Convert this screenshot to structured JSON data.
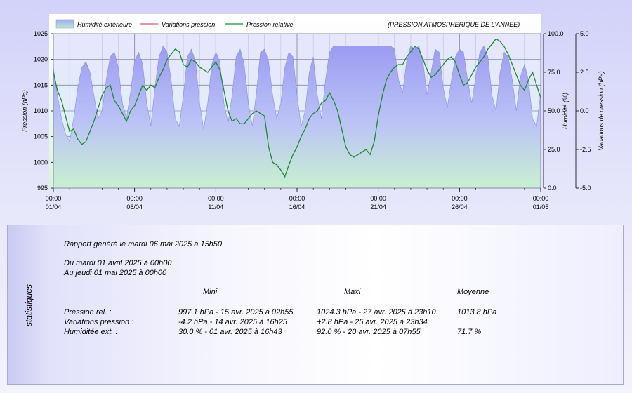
{
  "chart_data": {
    "type": "area",
    "title": "(PRESSION ATMOSPHERIQUE DE L'ANNEE)",
    "legend": {
      "placement": "top",
      "items": [
        {
          "label": "Humidité extérieure",
          "kind": "area",
          "color": "#9a9af0"
        },
        {
          "label": "Variations pression",
          "kind": "line",
          "color": "#c03060"
        },
        {
          "label": "Pression relative",
          "kind": "line",
          "color": "#1e8a2e"
        }
      ]
    },
    "x_axis": {
      "range": [
        "2025-04-01 00:00",
        "2025-05-01 00:00"
      ],
      "ticks": [
        {
          "time": "00:00",
          "date": "01/04",
          "day": 0
        },
        {
          "time": "00:00",
          "date": "06/04",
          "day": 5
        },
        {
          "time": "00:00",
          "date": "11/04",
          "day": 10
        },
        {
          "time": "00:00",
          "date": "16/04",
          "day": 15
        },
        {
          "time": "00:00",
          "date": "21/04",
          "day": 20
        },
        {
          "time": "00:00",
          "date": "26/04",
          "day": 25
        },
        {
          "time": "00:00",
          "date": "01/05",
          "day": 30
        }
      ]
    },
    "y_left": {
      "label": "Pression (hPa)",
      "range": [
        995,
        1025
      ],
      "ticks": [
        "995",
        "1000",
        "1005",
        "1010",
        "1015",
        "1020",
        "1025"
      ]
    },
    "y_right_humidity": {
      "label": "Humidité (%)",
      "range": [
        0,
        100
      ],
      "ticks": [
        "0.0",
        "25.0",
        "50.0",
        "75.0",
        "100.0"
      ]
    },
    "y_right_variation": {
      "label": "Variations de pression (hPa)",
      "range": [
        -5,
        5
      ],
      "ticks": [
        "-5.0",
        "-2.5",
        "0.0",
        "2.5",
        "5.0"
      ]
    },
    "grid": true,
    "series": [
      {
        "name": "Pression relative",
        "axis": "left",
        "x": [
          0,
          0.25,
          0.5,
          0.75,
          1,
          1.25,
          1.5,
          1.75,
          2,
          2.25,
          2.5,
          2.75,
          3,
          3.25,
          3.5,
          3.75,
          4,
          4.25,
          4.5,
          4.75,
          5,
          5.25,
          5.5,
          5.75,
          6,
          6.25,
          6.5,
          6.75,
          7,
          7.25,
          7.5,
          7.75,
          8,
          8.25,
          8.5,
          8.75,
          9,
          9.25,
          9.5,
          9.75,
          10,
          10.25,
          10.5,
          10.75,
          11,
          11.25,
          11.5,
          11.75,
          12,
          12.25,
          12.5,
          12.75,
          13,
          13.25,
          13.5,
          13.75,
          14,
          14.25,
          14.5,
          14.75,
          15,
          15.25,
          15.5,
          15.75,
          16,
          16.25,
          16.5,
          16.75,
          17,
          17.25,
          17.5,
          17.75,
          18,
          18.25,
          18.5,
          18.75,
          19,
          19.25,
          19.5,
          19.75,
          20,
          20.25,
          20.5,
          20.75,
          21,
          21.25,
          21.5,
          21.75,
          22,
          22.25,
          22.5,
          22.75,
          23,
          23.25,
          23.5,
          23.75,
          24,
          24.25,
          24.5,
          24.75,
          25,
          25.25,
          25.5,
          25.75,
          26,
          26.25,
          26.5,
          26.75,
          27,
          27.25,
          27.5,
          27.75,
          28,
          28.25,
          28.5,
          28.75,
          29,
          29.25,
          29.5,
          29.75,
          30
        ],
        "y": [
          1017.5,
          1014,
          1012,
          1009,
          1006,
          1006.5,
          1004.5,
          1003.5,
          1004,
          1006,
          1008,
          1010.5,
          1013,
          1014.5,
          1015,
          1012,
          1011,
          1009.5,
          1008,
          1010,
          1011,
          1013,
          1015,
          1014,
          1015,
          1014.5,
          1016.5,
          1018,
          1020,
          1021,
          1022,
          1021.5,
          1019,
          1018.5,
          1020,
          1019.5,
          1018.5,
          1018,
          1017.5,
          1018.5,
          1019.5,
          1018,
          1014,
          1010,
          1008,
          1008.5,
          1007.5,
          1007.5,
          1008.5,
          1009.5,
          1010,
          1009.5,
          1009,
          1003,
          1000,
          999.5,
          998.5,
          997.2,
          999.5,
          1001.5,
          1003,
          1005,
          1006.5,
          1008.5,
          1009.5,
          1010,
          1011.5,
          1012,
          1013.5,
          1012,
          1010,
          1006.5,
          1003,
          1001.5,
          1001,
          1001.5,
          1002,
          1002.5,
          1001.5,
          1004,
          1009,
          1013,
          1016,
          1017.5,
          1018.5,
          1019,
          1019,
          1020.5,
          1021.5,
          1022.5,
          1022,
          1020,
          1018,
          1016.5,
          1017,
          1018,
          1019,
          1020,
          1020.5,
          1019.5,
          1017,
          1015,
          1015.5,
          1017,
          1018.5,
          1019.5,
          1020.5,
          1022,
          1023,
          1024,
          1023.5,
          1022.5,
          1021,
          1019,
          1017,
          1015,
          1014,
          1016,
          1017.5,
          1015,
          1012.5
        ]
      },
      {
        "name": "Humidité extérieure",
        "axis": "right_humidity",
        "x": [
          0,
          0.25,
          0.5,
          0.75,
          1,
          1.25,
          1.5,
          1.75,
          2,
          2.25,
          2.5,
          2.75,
          3,
          3.25,
          3.5,
          3.75,
          4,
          4.25,
          4.5,
          4.75,
          5,
          5.25,
          5.5,
          5.75,
          6,
          6.25,
          6.5,
          6.75,
          7,
          7.25,
          7.5,
          7.75,
          8,
          8.25,
          8.5,
          8.75,
          9,
          9.25,
          9.5,
          9.75,
          10,
          10.25,
          10.5,
          10.75,
          11,
          11.25,
          11.5,
          11.75,
          12,
          12.25,
          12.5,
          12.75,
          13,
          13.25,
          13.5,
          13.75,
          14,
          14.25,
          14.5,
          14.75,
          15,
          15.25,
          15.5,
          15.75,
          16,
          16.25,
          16.5,
          16.75,
          17,
          17.25,
          17.5,
          17.75,
          18,
          18.25,
          18.5,
          18.75,
          19,
          19.25,
          19.5,
          19.75,
          20,
          20.25,
          20.5,
          20.75,
          21,
          21.25,
          21.5,
          21.75,
          22,
          22.25,
          22.5,
          22.75,
          23,
          23.25,
          23.5,
          23.75,
          24,
          24.25,
          24.5,
          24.75,
          25,
          25.25,
          25.5,
          25.75,
          26,
          26.25,
          26.5,
          26.75,
          27,
          27.25,
          27.5,
          27.75,
          28,
          28.25,
          28.5,
          28.75,
          29,
          29.25,
          29.5,
          29.75,
          30
        ],
        "y": [
          78,
          60,
          45,
          35,
          30,
          45,
          65,
          78,
          82,
          75,
          60,
          45,
          50,
          70,
          85,
          88,
          78,
          55,
          45,
          62,
          82,
          88,
          80,
          55,
          40,
          65,
          85,
          92,
          88,
          70,
          45,
          40,
          60,
          85,
          90,
          82,
          55,
          38,
          55,
          80,
          88,
          82,
          55,
          42,
          60,
          85,
          90,
          80,
          55,
          40,
          62,
          88,
          90,
          82,
          60,
          45,
          55,
          78,
          88,
          85,
          60,
          40,
          50,
          75,
          85,
          60,
          45,
          70,
          88,
          92,
          92,
          92,
          92,
          92,
          92,
          92,
          92,
          92,
          92,
          92,
          92,
          92,
          92,
          92,
          90,
          70,
          62,
          82,
          92,
          90,
          92,
          82,
          60,
          75,
          90,
          88,
          65,
          52,
          70,
          85,
          90,
          88,
          70,
          55,
          72,
          88,
          92,
          85,
          60,
          50,
          75,
          88,
          85,
          70,
          50,
          72,
          80,
          70,
          45,
          40,
          62
        ]
      }
    ]
  },
  "stats": {
    "side_label": "statistiques",
    "report_line": "Rapport généré le mardi 06 mai 2025 à 15h50",
    "from_line": "Du mardi 01 avril 2025 à 00h00",
    "to_line": "Au jeudi 01 mai 2025 à 00h00",
    "headers": {
      "mini": "Mini",
      "maxi": "Maxi",
      "moyenne": "Moyenne"
    },
    "rows": [
      {
        "label": "Pression rel. :",
        "mini": "997.1 hPa - 15 avr. 2025 à 02h55",
        "maxi": "1024.3 hPa - 27 avr. 2025 à 23h10",
        "moyenne": "1013.8 hPa"
      },
      {
        "label": "Variations pression :",
        "mini": "-4.2 hPa - 14 avr. 2025 à 16h25",
        "maxi": "+2.8 hPa - 25 avr. 2025 à 23h34",
        "moyenne": ""
      },
      {
        "label": "Humiditée ext. :",
        "mini": "30.0 % - 01 avr. 2025 à 16h43",
        "maxi": "92.0 % - 20 avr. 2025 à 07h55",
        "moyenne": "71.7 %"
      }
    ]
  }
}
